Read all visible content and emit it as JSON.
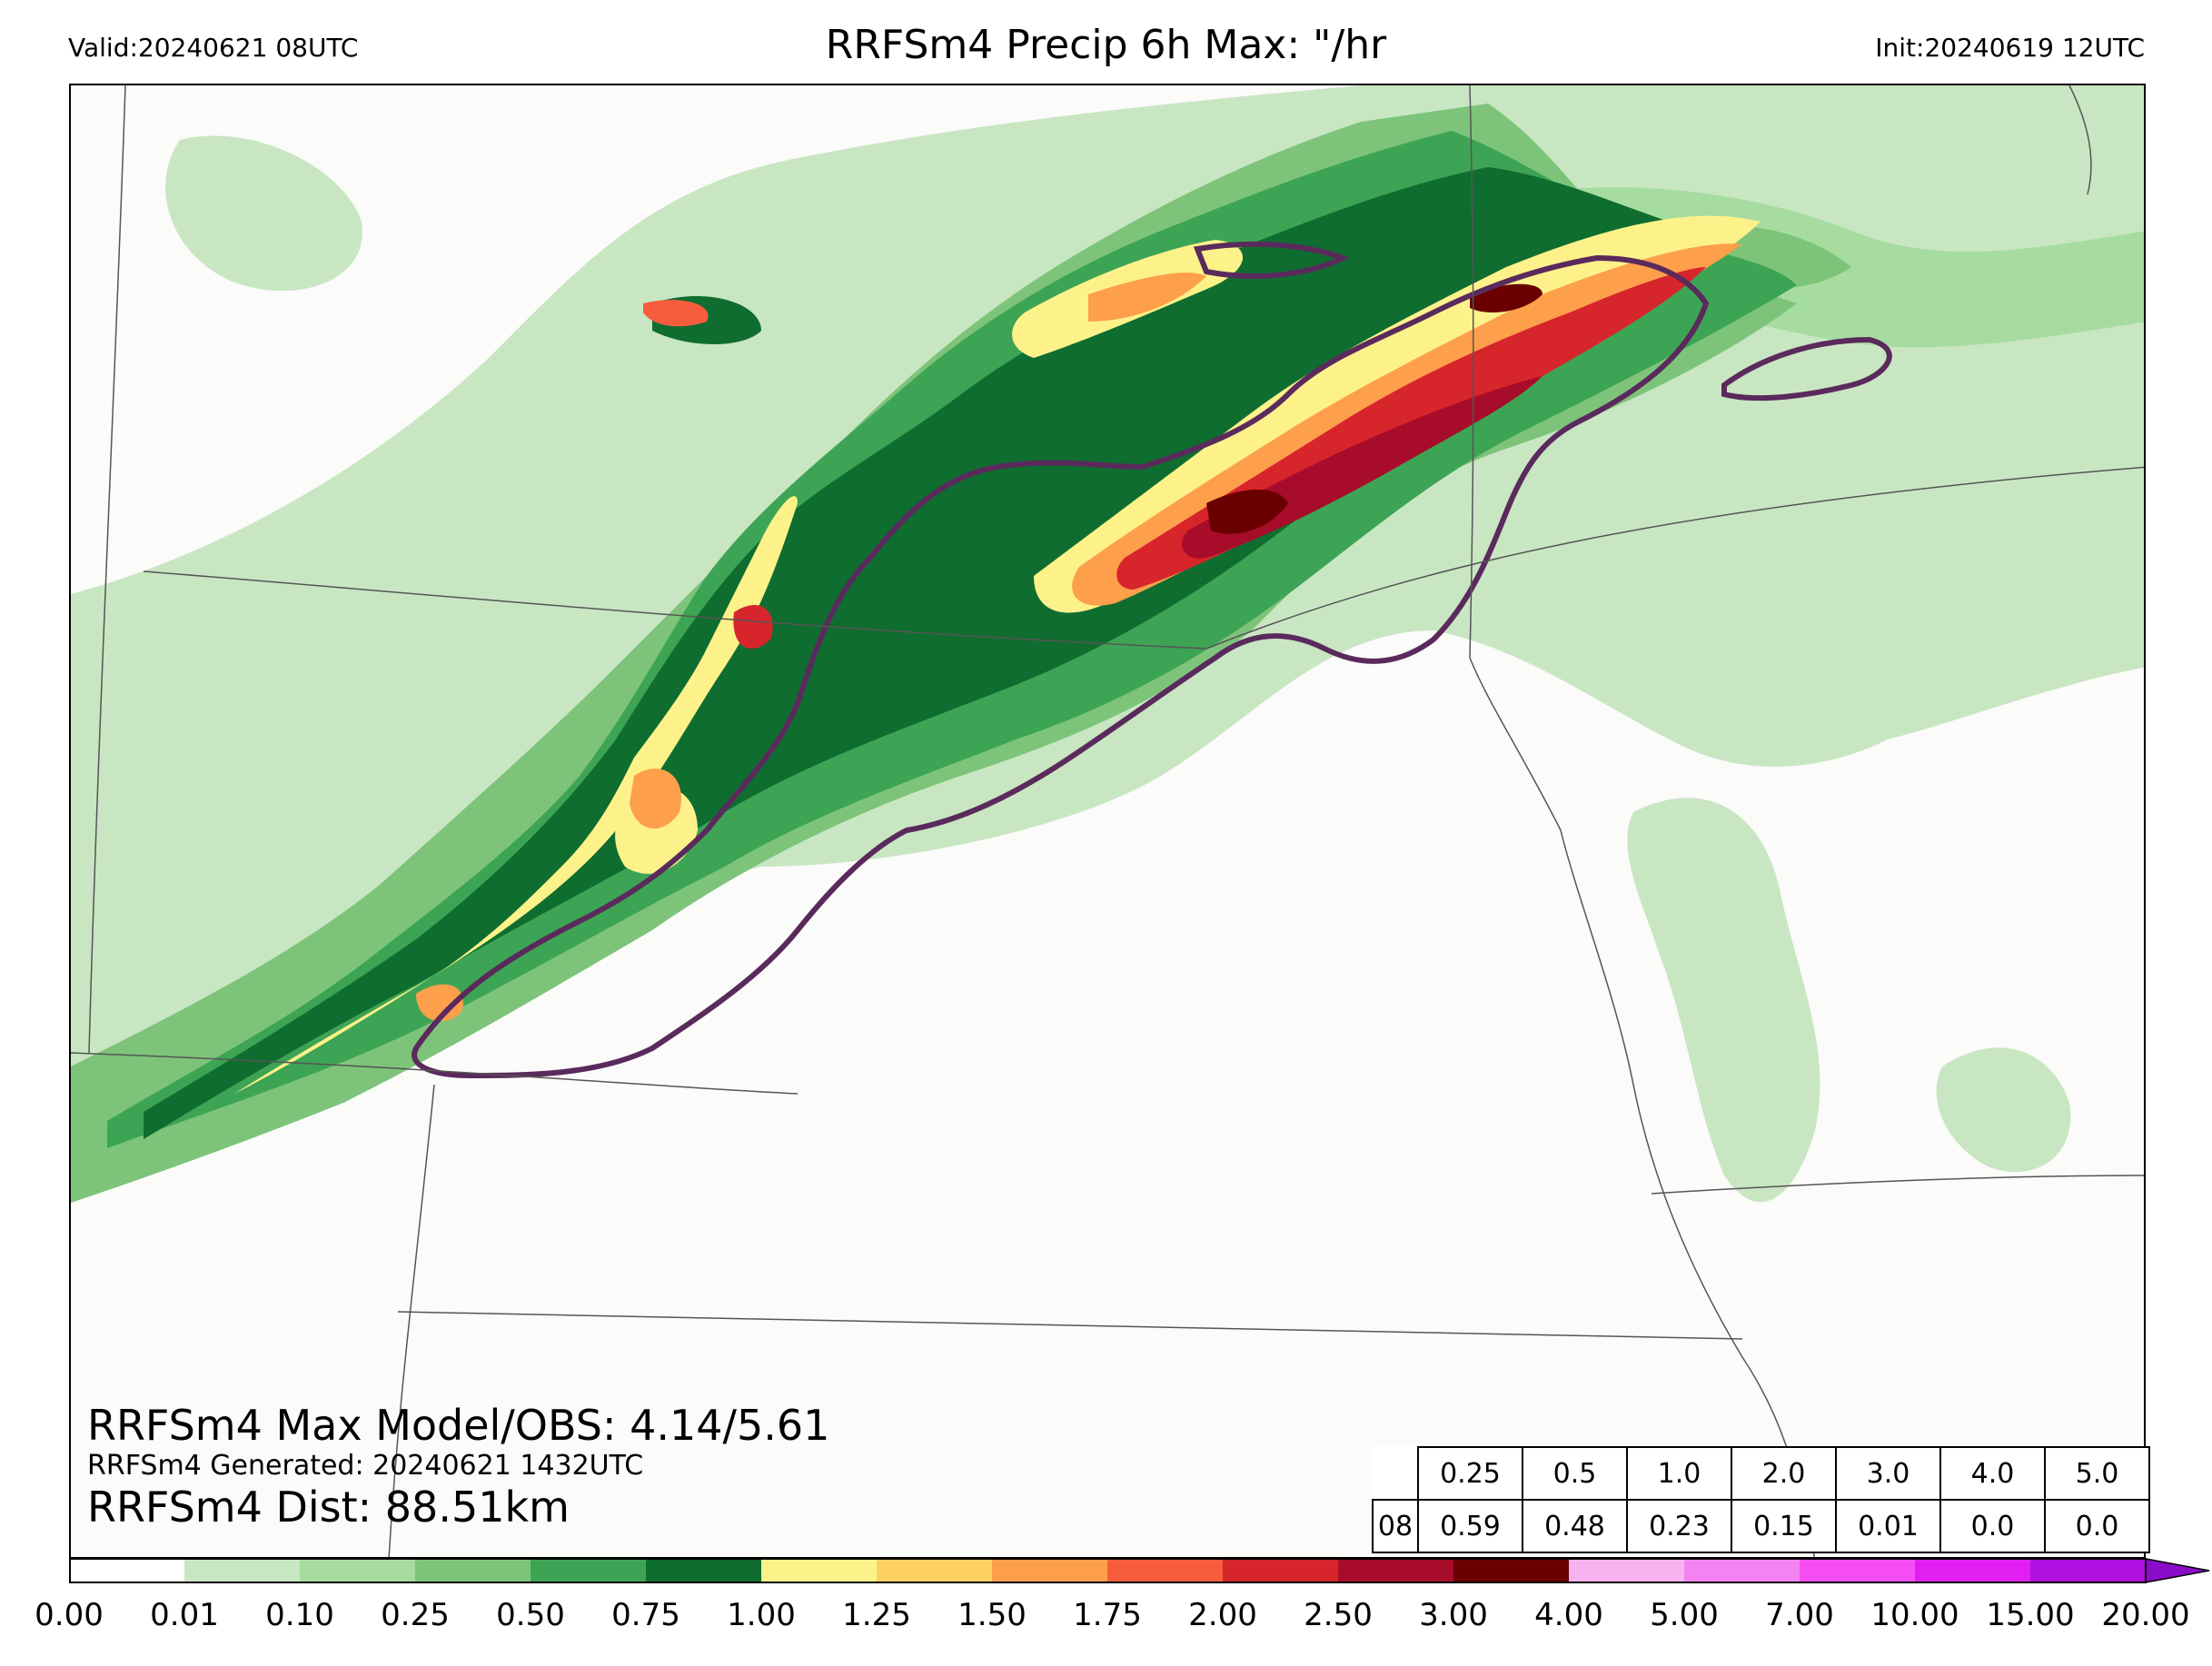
{
  "header": {
    "valid": "Valid:20240621 08UTC",
    "title": "RRFSm4 Precip 6h Max: \"/hr",
    "init": "Init:20240619 12UTC"
  },
  "annotations": {
    "max_line": "RRFSm4 Max Model/OBS: 4.14/5.61",
    "generated_line": "RRFSm4 Generated: 20240621 1432UTC",
    "dist_line": "RRFSm4 Dist: 88.51km"
  },
  "stats_table": {
    "headers": [
      "0.25",
      "0.5",
      "1.0",
      "2.0",
      "3.0",
      "4.0",
      "5.0"
    ],
    "row_label": "08",
    "values": [
      "0.59",
      "0.48",
      "0.23",
      "0.15",
      "0.01",
      "0.0",
      "0.0"
    ]
  },
  "colorbar": {
    "ticks": [
      "0.00",
      "0.01",
      "0.10",
      "0.25",
      "0.50",
      "0.75",
      "1.00",
      "1.25",
      "1.50",
      "1.75",
      "2.00",
      "2.50",
      "3.00",
      "4.00",
      "5.00",
      "7.00",
      "10.00",
      "15.00",
      "20.00"
    ],
    "colors": [
      "#ffffff",
      "#c9e6c3",
      "#a6dca0",
      "#7dc47a",
      "#3ea455",
      "#0f6d30",
      "#fdf28a",
      "#fed062",
      "#fd9f4b",
      "#f75c3c",
      "#d7252c",
      "#a70c2a",
      "#6a0000",
      "#f7b2f0",
      "#f482f0",
      "#f54ef5",
      "#e01ff0",
      "#b010e0",
      "#8a0bc8"
    ]
  },
  "map": {
    "precip_colors": {
      "light": "#c9e6c3",
      "light2": "#a6dca0",
      "mid": "#7dc47a",
      "green": "#3ea455",
      "dark_green": "#0f6d30",
      "yellow": "#fdf28a",
      "orange": "#fd9f4b",
      "red": "#d7252c",
      "dark_red": "#a70c2a",
      "maroon": "#6a0000"
    },
    "obs_contour_color": "#5a2a5c"
  }
}
